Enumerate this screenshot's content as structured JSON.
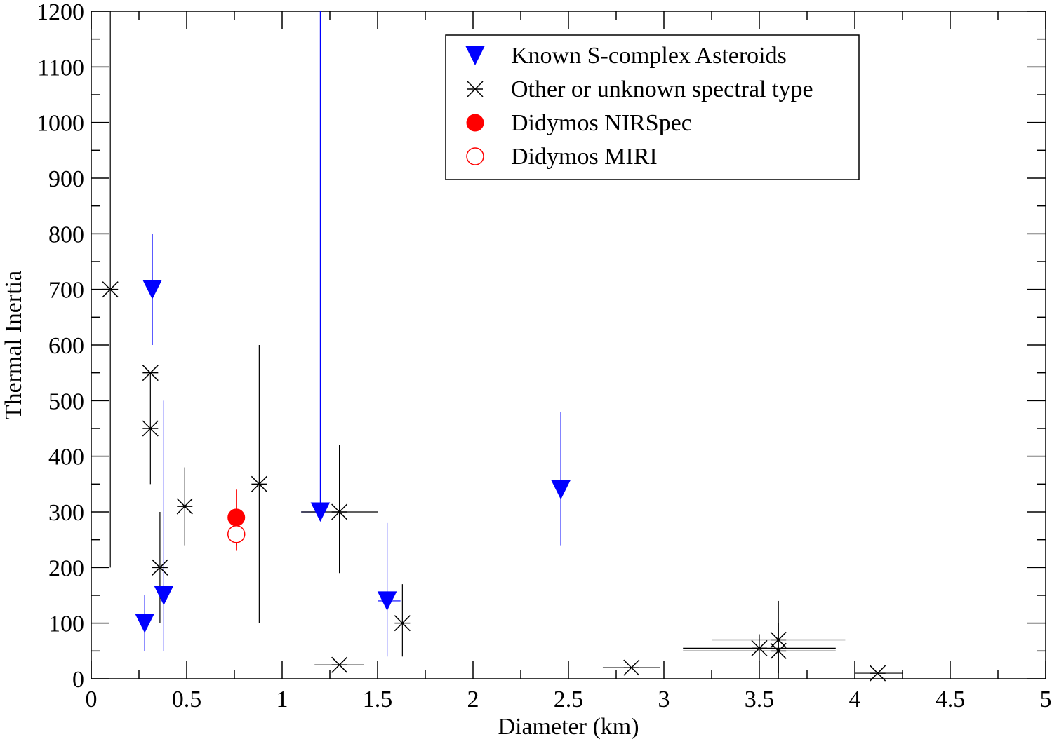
{
  "chart_data": {
    "type": "scatter",
    "xlabel": "Diameter (km)",
    "ylabel": "Thermal Inertia",
    "xlim": [
      0,
      5
    ],
    "ylim": [
      0,
      1200
    ],
    "xticks": [
      0,
      0.5,
      1,
      1.5,
      2,
      2.5,
      3,
      3.5,
      4,
      4.5,
      5
    ],
    "xtick_labels": [
      "0",
      "0.5",
      "1",
      "1.5",
      "2",
      "2.5",
      "3",
      "3.5",
      "4",
      "4.5",
      "5"
    ],
    "yticks": [
      0,
      100,
      200,
      300,
      400,
      500,
      600,
      700,
      800,
      900,
      1000,
      1100,
      1200
    ],
    "ytick_labels": [
      "0",
      "100",
      "200",
      "300",
      "400",
      "500",
      "600",
      "700",
      "800",
      "900",
      "1000",
      "1100",
      "1200"
    ],
    "grid": false,
    "legend_position": "top-right",
    "series": [
      {
        "name": "Known S-complex Asteroids",
        "marker": "triangle-down-filled",
        "color": "#0000ff",
        "points": [
          {
            "x": 0.28,
            "y": 100,
            "ylow": 50,
            "yhigh": 150
          },
          {
            "x": 0.32,
            "y": 700,
            "ylow": 600,
            "yhigh": 800
          },
          {
            "x": 0.38,
            "y": 150,
            "ylow": 50,
            "yhigh": 500
          },
          {
            "x": 1.2,
            "y": 300,
            "ylow": 300,
            "yhigh": 1200,
            "xlow": 1.1,
            "xhigh": 1.2
          },
          {
            "x": 1.55,
            "y": 140,
            "ylow": 40,
            "yhigh": 280,
            "xlow": 1.5,
            "xhigh": 1.62
          },
          {
            "x": 2.46,
            "y": 340,
            "ylow": 240,
            "yhigh": 480
          }
        ]
      },
      {
        "name": "Other or unknown spectral type",
        "marker": "asterisk",
        "color": "#000000",
        "points": [
          {
            "x": 0.1,
            "y": 700,
            "ylow": 200,
            "yhigh": 1200
          },
          {
            "x": 0.31,
            "y": 550
          },
          {
            "x": 0.31,
            "y": 450,
            "ylow": 350,
            "yhigh": 550
          },
          {
            "x": 0.36,
            "y": 200,
            "ylow": 100,
            "yhigh": 300
          },
          {
            "x": 0.49,
            "y": 310,
            "ylow": 240,
            "yhigh": 380
          },
          {
            "x": 0.88,
            "y": 350,
            "ylow": 100,
            "yhigh": 600
          },
          {
            "x": 1.3,
            "y": 300,
            "ylow": 190,
            "yhigh": 420,
            "xlow": 1.1,
            "xhigh": 1.5
          },
          {
            "x": 1.3,
            "y": 25,
            "xlow": 1.17,
            "xhigh": 1.43
          },
          {
            "x": 1.63,
            "y": 100,
            "ylow": 40,
            "yhigh": 170
          },
          {
            "x": 2.83,
            "y": 20,
            "xlow": 2.68,
            "xhigh": 2.98
          },
          {
            "x": 3.5,
            "y": 55,
            "ylow": 30,
            "yhigh": 80,
            "xlow": 3.1,
            "xhigh": 3.9
          },
          {
            "x": 3.6,
            "y": 70,
            "ylow": 0,
            "yhigh": 140,
            "xlow": 3.25,
            "xhigh": 3.95
          },
          {
            "x": 3.6,
            "y": 50,
            "ylow": 10,
            "yhigh": 100,
            "xlow": 3.1,
            "xhigh": 3.9
          },
          {
            "x": 4.12,
            "y": 10,
            "xlow": 4.0,
            "xhigh": 4.25
          }
        ]
      },
      {
        "name": "Didymos NIRSpec",
        "marker": "circle-filled",
        "color": "#ff0000",
        "points": [
          {
            "x": 0.76,
            "y": 290,
            "ylow": 240,
            "yhigh": 340
          }
        ]
      },
      {
        "name": "Didymos MIRI",
        "marker": "circle-open",
        "color": "#ff0000",
        "points": [
          {
            "x": 0.76,
            "y": 260,
            "ylow": 230,
            "yhigh": 290
          }
        ]
      }
    ]
  }
}
